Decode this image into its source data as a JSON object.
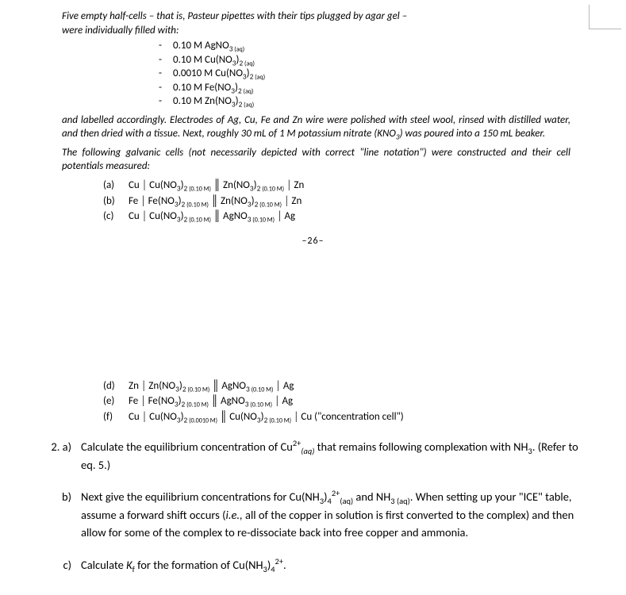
{
  "intro": {
    "line1": "Five empty half-cells – that is, Pasteur pipettes with their tips plugged by agar gel –",
    "line2": "were individually filled with:"
  },
  "solutions": [
    {
      "conc": "0.10 M AgNO",
      "idx": "3",
      "suffix": " (aq)"
    },
    {
      "conc": "0.10 M Cu(NO",
      "idx": "3",
      "after": ")",
      "idx2": "2",
      "suffix": " (aq)"
    },
    {
      "conc": "0.0010 M Cu(NO",
      "idx": "3",
      "after": ")",
      "idx2": "2",
      "suffix": " (aq)"
    },
    {
      "conc": "0.10 M Fe(NO",
      "idx": "3",
      "after": ")",
      "idx2": "2",
      "suffix": " (aq)"
    },
    {
      "conc": "0.10 M Zn(NO",
      "idx": "3",
      "after": ")",
      "idx2": "2",
      "suffix": " (aq)"
    }
  ],
  "para2a": "and labelled accordingly.    Electrodes of Ag, Cu, Fe and Zn wire were polished with steel wool, rinsed with distilled water, and then dried with a tissue.    Next, roughly 30 mL of 1 M potassium nitrate (KNO",
  "para2b": ") was poured into a 150 mL beaker.",
  "para2sub": "3",
  "para3": "The following galvanic cells (not necessarily depicted with correct \"line notation\") were constructed and their cell potentials measured:",
  "cells1": [
    {
      "l": "(a)",
      "left_m": "Cu",
      "left_s1": "Cu(NO",
      "left_i": "3",
      "left_s2": ")",
      "left_j": "2",
      "left_c": " (0.10 M)",
      "right_s1": "Zn(NO",
      "right_i": "3",
      "right_s2": ")",
      "right_j": "2",
      "right_c": " (0.10 M)",
      "right_m": "Zn"
    },
    {
      "l": "(b)",
      "left_m": "Fe",
      "left_s1": "Fe(NO",
      "left_i": "3",
      "left_s2": ")",
      "left_j": "2",
      "left_c": " (0.10 M)",
      "right_s1": "Zn(NO",
      "right_i": "3",
      "right_s2": ")",
      "right_j": "2",
      "right_c": " (0.10 M)",
      "right_m": "Zn"
    },
    {
      "l": "(c)",
      "left_m": "Cu",
      "left_s1": "Cu(NO",
      "left_i": "3",
      "left_s2": ")",
      "left_j": "2",
      "left_c": " (0.10 M)",
      "right_s1": "AgNO",
      "right_i": "3",
      "right_s2": "",
      "right_j": "",
      "right_c": " (0.10 M)",
      "right_m": "Ag"
    }
  ],
  "pagenum": "–26–",
  "cells2": [
    {
      "l": "(d)",
      "left_m": "Zn",
      "left_s1": "Zn(NO",
      "left_i": "3",
      "left_s2": ")",
      "left_j": "2",
      "left_c": " (0.10 M)",
      "right_s1": "AgNO",
      "right_i": "3",
      "right_s2": "",
      "right_j": "",
      "right_c": " (0.10 M)",
      "right_m": "Ag",
      "extra": ""
    },
    {
      "l": "(e)",
      "left_m": "Fe",
      "left_s1": "Fe(NO",
      "left_i": "3",
      "left_s2": ")",
      "left_j": "2",
      "left_c": " (0.10 M)",
      "right_s1": "AgNO",
      "right_i": "3",
      "right_s2": "",
      "right_j": "",
      "right_c": " (0.10 M)",
      "right_m": "Ag",
      "extra": ""
    },
    {
      "l": "(f)",
      "left_m": "Cu",
      "left_s1": "Cu(NO",
      "left_i": "3",
      "left_s2": ")",
      "left_j": "2",
      "left_c": " (0.0010 M)",
      "right_s1": "Cu(NO",
      "right_i": "3",
      "right_s2": ")",
      "right_j": "2",
      "right_c": " (0.10 M)",
      "right_m": "Cu",
      "extra": "     (\"concentration cell\")"
    }
  ],
  "q2": {
    "a_label": "2. a)",
    "a_text1": "Calculate the equilibrium concentration of Cu",
    "a_sup": "2+",
    "a_sub": "(aq)",
    "a_text2": " that remains following complexation with NH",
    "a_sub2": "3",
    "a_text3": ".    (Refer to eq. 5.)",
    "b_label": "b)",
    "b_text1": "Next give the equilibrium concentrations for Cu(NH",
    "b_sub1": "3",
    "b_text1b": ")",
    "b_sub2": "4",
    "b_sup1": "2+",
    "b_sub3": "(aq)",
    "b_text2": " and NH",
    "b_sub4": "3",
    "b_sub5": " (aq)",
    "b_text3": ".    When setting up your \"ICE\" table, assume a forward shift occurs (",
    "b_ital": "i.e.,",
    "b_text4": " all of the copper in solution is first converted to the complex) and then allow for some of the complex to re-dissociate back into free copper and ammonia.",
    "c_label": "c)",
    "c_text1": "Calculate ",
    "c_kf": "K",
    "c_kfsub": "f",
    "c_text2": " for the formation of Cu(NH",
    "c_sub1": "3",
    "c_text2b": ")",
    "c_sub2": "4",
    "c_sup1": "2+",
    "c_text3": "."
  }
}
